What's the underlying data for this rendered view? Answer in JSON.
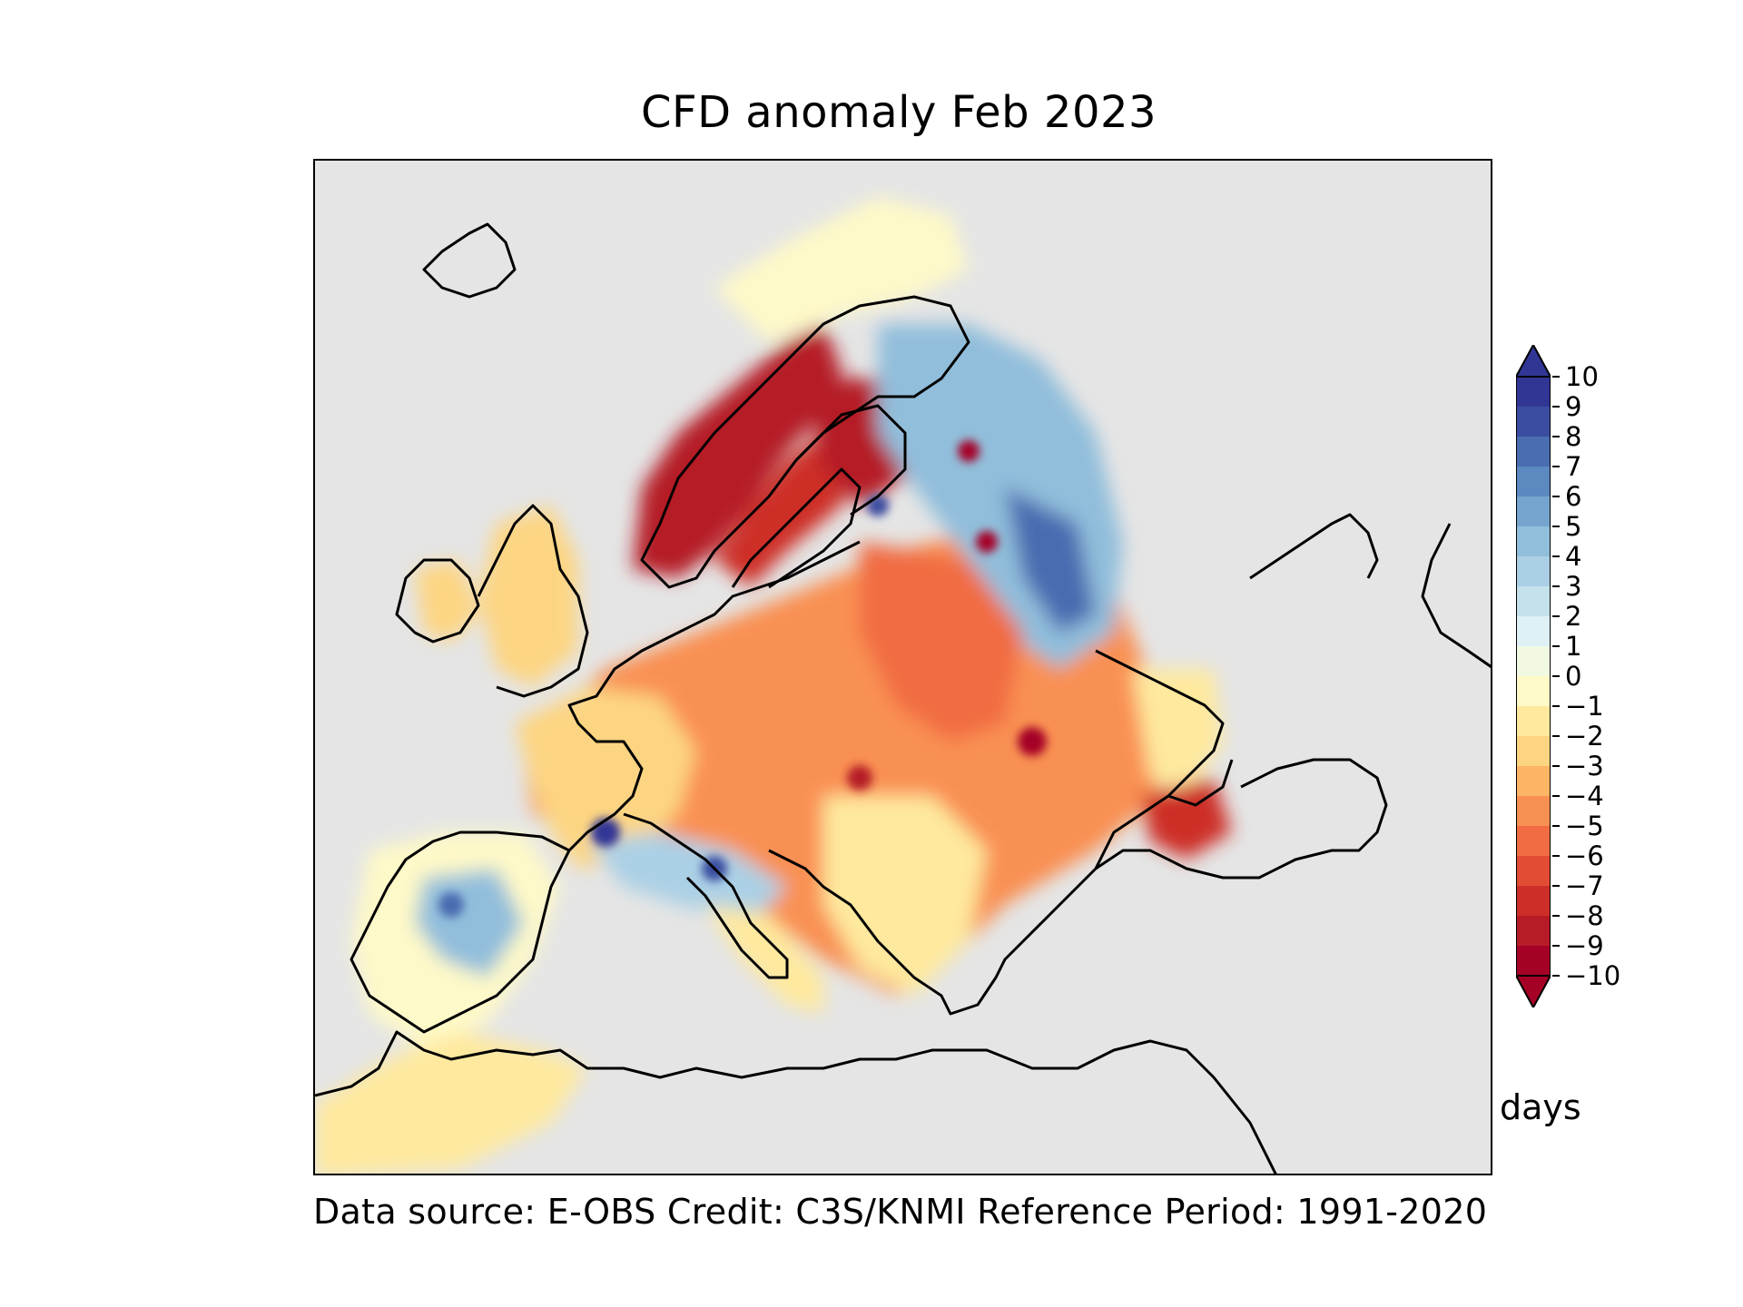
{
  "title": "CFD anomaly Feb 2023",
  "footer": "Data source: E-OBS  Credit: C3S/KNMI  Reference Period: 1991-2020",
  "colorbar": {
    "units": "days",
    "ticks": [
      "10",
      "9",
      "8",
      "7",
      "6",
      "5",
      "4",
      "3",
      "2",
      "1",
      "0",
      "−1",
      "−2",
      "−3",
      "−4",
      "−5",
      "−6",
      "−7",
      "−8",
      "−9",
      "−10"
    ],
    "colors": [
      "#313695",
      "#3b4da0",
      "#4a6cb0",
      "#5b89c0",
      "#75a5cf",
      "#91bedb",
      "#abd0e5",
      "#c5e2ec",
      "#dff1f5",
      "#f1f9e3",
      "#fef9c8",
      "#fee99e",
      "#fdd582",
      "#fcb565",
      "#f99053",
      "#f16c43",
      "#e24c34",
      "#cd2f28",
      "#b51c27",
      "#a50026"
    ]
  },
  "map": {
    "background": "#e5e5e5",
    "coastline_color": "#000000"
  }
}
